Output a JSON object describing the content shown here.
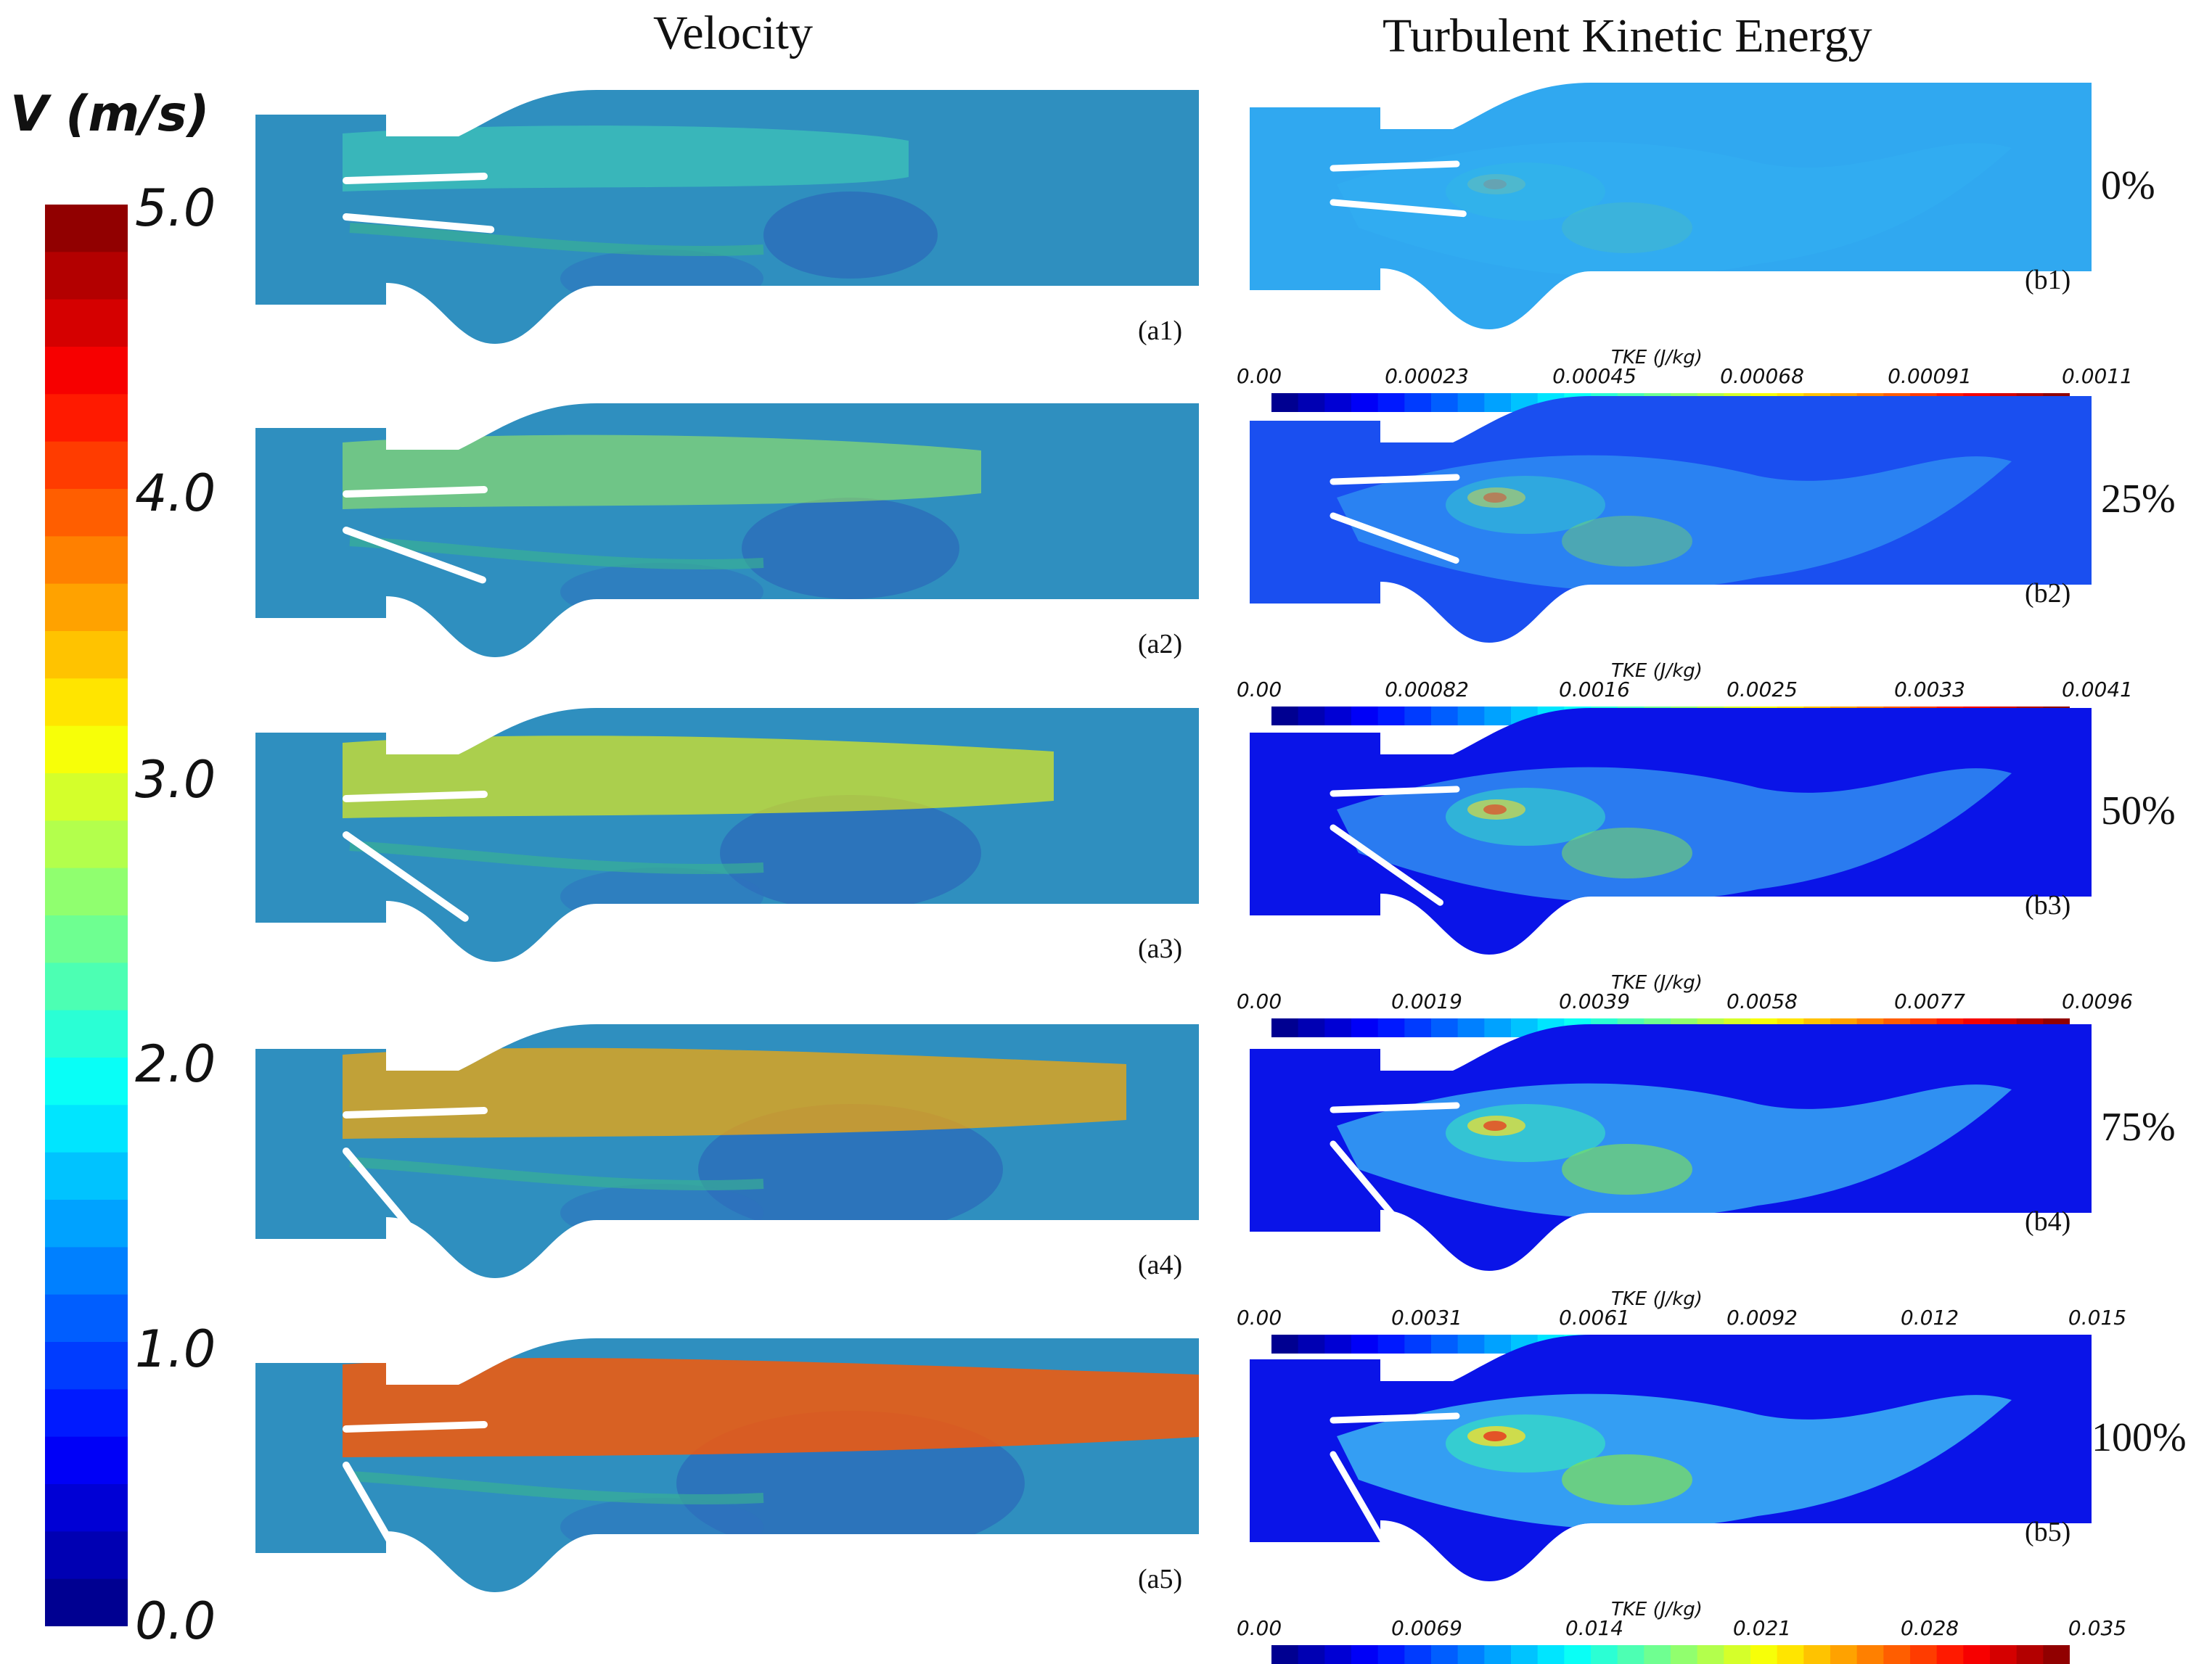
{
  "titles": {
    "left": "Velocity",
    "right": "Turbulent Kinetic Energy"
  },
  "velocity_legend": {
    "unit": "V (m/s)",
    "ticks": [
      "5.0",
      "4.0",
      "3.0",
      "2.0",
      "1.0",
      "0.0"
    ],
    "min": 0.0,
    "max": 5.0,
    "colormap": "jet"
  },
  "rows": [
    {
      "vel_label": "(a1)",
      "tke_label": "(b1)",
      "opening": "0%",
      "tke_scale": {
        "title": "TKE (J/kg)",
        "ticks": [
          "0.00",
          "0.00023",
          "0.00045",
          "0.00068",
          "0.00091",
          "0.0011"
        ]
      }
    },
    {
      "vel_label": "(a2)",
      "tke_label": "(b2)",
      "opening": "25%",
      "tke_scale": {
        "title": "TKE (J/kg)",
        "ticks": [
          "0.00",
          "0.00082",
          "0.0016",
          "0.0025",
          "0.0033",
          "0.0041"
        ]
      }
    },
    {
      "vel_label": "(a3)",
      "tke_label": "(b3)",
      "opening": "50%",
      "tke_scale": {
        "title": "TKE (J/kg)",
        "ticks": [
          "0.00",
          "0.0019",
          "0.0039",
          "0.0058",
          "0.0077",
          "0.0096"
        ]
      }
    },
    {
      "vel_label": "(a4)",
      "tke_label": "(b4)",
      "opening": "75%",
      "tke_scale": {
        "title": "TKE (J/kg)",
        "ticks": [
          "0.00",
          "0.0031",
          "0.0061",
          "0.0092",
          "0.012",
          "0.015"
        ]
      }
    },
    {
      "vel_label": "(a5)",
      "tke_label": "(b5)",
      "opening": "100%",
      "tke_scale": {
        "title": "TKE (J/kg)",
        "ticks": [
          "0.00",
          "0.0069",
          "0.014",
          "0.021",
          "0.028",
          "0.035"
        ]
      }
    }
  ]
}
